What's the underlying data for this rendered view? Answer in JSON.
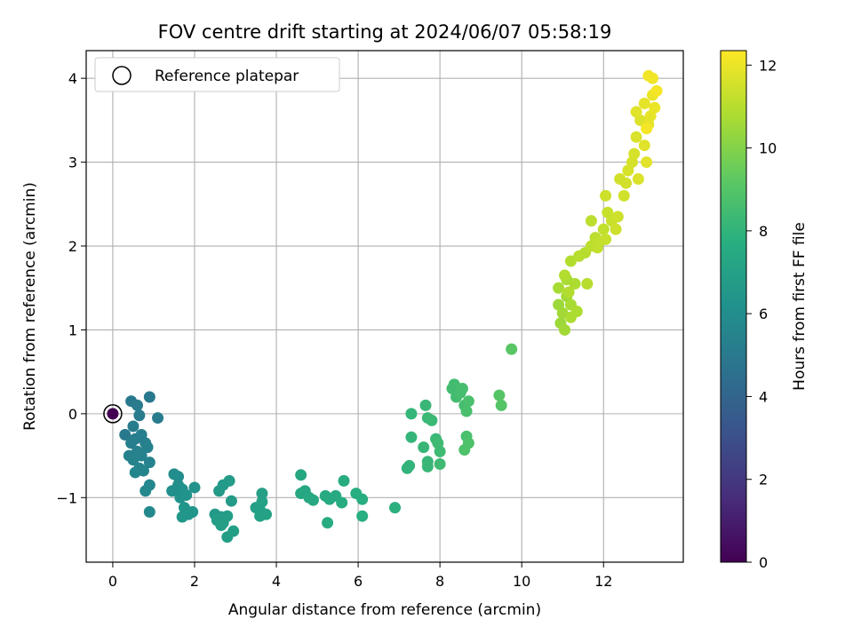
{
  "chart_data": {
    "type": "scatter",
    "title": "FOV centre drift starting at 2024/06/07 05:58:19",
    "xlabel": "Angular distance from reference (arcmin)",
    "ylabel": "Rotation from reference (arcmin)",
    "xlim": [
      -0.65,
      13.95
    ],
    "ylim": [
      -1.77,
      4.33
    ],
    "xticks": [
      0,
      2,
      4,
      6,
      8,
      10,
      12
    ],
    "yticks": [
      -1,
      0,
      1,
      2,
      3,
      4
    ],
    "grid": true,
    "legend": {
      "position": "top-left",
      "entries": [
        "Reference platepar"
      ]
    },
    "reference_point": {
      "x": 0,
      "y": 0,
      "c": 0
    },
    "colorbar": {
      "label": "Hours from first FF file",
      "range": [
        0,
        12.35
      ],
      "ticks": [
        0,
        2,
        4,
        6,
        8,
        10,
        12
      ],
      "colormap": "viridis"
    },
    "series": [
      {
        "points": [
          [
            0.0,
            0.0,
            0.0
          ],
          [
            0.3,
            -0.25,
            5.0
          ],
          [
            0.45,
            0.15,
            5.0
          ],
          [
            0.6,
            0.1,
            5.1
          ],
          [
            0.65,
            -0.02,
            5.1
          ],
          [
            0.9,
            0.2,
            5.0
          ],
          [
            1.1,
            -0.05,
            5.1
          ],
          [
            0.5,
            -0.15,
            5.2
          ],
          [
            0.55,
            -0.3,
            5.2
          ],
          [
            0.45,
            -0.35,
            5.3
          ],
          [
            0.7,
            -0.25,
            5.3
          ],
          [
            0.8,
            -0.35,
            5.3
          ],
          [
            0.85,
            -0.4,
            5.4
          ],
          [
            0.6,
            -0.45,
            5.4
          ],
          [
            0.4,
            -0.5,
            5.4
          ],
          [
            0.5,
            -0.55,
            5.5
          ],
          [
            0.7,
            -0.5,
            5.5
          ],
          [
            0.9,
            -0.58,
            5.5
          ],
          [
            0.65,
            -0.65,
            5.6
          ],
          [
            0.55,
            -0.7,
            5.6
          ],
          [
            0.75,
            -0.68,
            5.6
          ],
          [
            0.9,
            -0.85,
            5.7
          ],
          [
            0.8,
            -0.92,
            5.7
          ],
          [
            0.9,
            -1.17,
            5.8
          ],
          [
            1.5,
            -0.72,
            6.0
          ],
          [
            1.6,
            -0.75,
            6.0
          ],
          [
            1.45,
            -0.92,
            6.1
          ],
          [
            1.6,
            -0.85,
            6.1
          ],
          [
            1.7,
            -0.9,
            6.2
          ],
          [
            1.65,
            -1.0,
            6.2
          ],
          [
            1.8,
            -0.97,
            6.3
          ],
          [
            2.0,
            -0.88,
            6.3
          ],
          [
            1.75,
            -1.12,
            6.4
          ],
          [
            1.95,
            -1.17,
            6.4
          ],
          [
            1.85,
            -1.2,
            6.4
          ],
          [
            1.7,
            -1.23,
            6.5
          ],
          [
            2.5,
            -1.2,
            6.6
          ],
          [
            2.6,
            -0.92,
            6.6
          ],
          [
            2.7,
            -0.85,
            6.6
          ],
          [
            2.85,
            -0.8,
            6.7
          ],
          [
            2.9,
            -1.04,
            6.7
          ],
          [
            2.65,
            -1.23,
            6.7
          ],
          [
            2.55,
            -1.27,
            6.8
          ],
          [
            2.7,
            -1.3,
            6.8
          ],
          [
            2.8,
            -1.22,
            6.8
          ],
          [
            2.65,
            -1.33,
            6.9
          ],
          [
            2.95,
            -1.4,
            6.9
          ],
          [
            2.8,
            -1.47,
            6.9
          ],
          [
            3.5,
            -1.12,
            7.0
          ],
          [
            3.6,
            -1.15,
            7.0
          ],
          [
            3.65,
            -0.95,
            7.0
          ],
          [
            3.65,
            -1.05,
            7.1
          ],
          [
            3.75,
            -1.2,
            7.1
          ],
          [
            3.6,
            -1.22,
            7.1
          ],
          [
            4.6,
            -0.73,
            7.3
          ],
          [
            4.6,
            -0.95,
            7.3
          ],
          [
            4.7,
            -0.92,
            7.3
          ],
          [
            4.8,
            -1.0,
            7.4
          ],
          [
            4.9,
            -1.03,
            7.4
          ],
          [
            5.2,
            -0.98,
            7.5
          ],
          [
            5.3,
            -1.02,
            7.5
          ],
          [
            5.45,
            -0.98,
            7.5
          ],
          [
            5.6,
            -1.06,
            7.6
          ],
          [
            5.25,
            -1.3,
            7.6
          ],
          [
            5.65,
            -0.8,
            7.6
          ],
          [
            5.95,
            -0.95,
            7.7
          ],
          [
            6.1,
            -1.02,
            7.7
          ],
          [
            6.1,
            -1.22,
            7.7
          ],
          [
            6.9,
            -1.12,
            7.8
          ],
          [
            7.2,
            -0.65,
            8.0
          ],
          [
            7.25,
            -0.62,
            8.0
          ],
          [
            7.3,
            -0.28,
            8.1
          ],
          [
            7.3,
            0.0,
            8.1
          ],
          [
            7.6,
            -0.4,
            8.2
          ],
          [
            7.7,
            -0.57,
            8.2
          ],
          [
            7.7,
            -0.63,
            8.2
          ],
          [
            7.65,
            0.1,
            8.2
          ],
          [
            7.7,
            -0.05,
            8.3
          ],
          [
            7.8,
            -0.08,
            8.3
          ],
          [
            7.9,
            -0.3,
            8.3
          ],
          [
            7.95,
            -0.35,
            8.4
          ],
          [
            8.0,
            -0.45,
            8.4
          ],
          [
            8.0,
            -0.6,
            8.4
          ],
          [
            8.3,
            0.3,
            8.5
          ],
          [
            8.35,
            0.35,
            8.5
          ],
          [
            8.4,
            0.2,
            8.5
          ],
          [
            8.5,
            0.25,
            8.6
          ],
          [
            8.55,
            0.3,
            8.6
          ],
          [
            8.6,
            0.1,
            8.6
          ],
          [
            8.7,
            0.15,
            8.7
          ],
          [
            8.65,
            0.03,
            8.7
          ],
          [
            8.65,
            -0.27,
            8.7
          ],
          [
            8.7,
            -0.35,
            8.8
          ],
          [
            8.6,
            -0.43,
            8.8
          ],
          [
            9.45,
            0.22,
            9.0
          ],
          [
            9.5,
            0.1,
            9.0
          ],
          [
            9.75,
            0.77,
            9.1
          ],
          [
            10.9,
            1.3,
            10.5
          ],
          [
            10.95,
            1.08,
            10.5
          ],
          [
            11.05,
            1.0,
            10.6
          ],
          [
            11.0,
            1.2,
            10.6
          ],
          [
            11.1,
            1.4,
            10.6
          ],
          [
            10.9,
            1.5,
            10.7
          ],
          [
            11.1,
            1.6,
            10.7
          ],
          [
            11.2,
            1.3,
            10.7
          ],
          [
            11.2,
            1.15,
            10.8
          ],
          [
            11.35,
            1.22,
            10.8
          ],
          [
            11.3,
            1.55,
            10.8
          ],
          [
            11.15,
            1.45,
            10.9
          ],
          [
            11.05,
            1.65,
            10.9
          ],
          [
            11.2,
            1.82,
            10.9
          ],
          [
            11.4,
            1.88,
            11.0
          ],
          [
            11.6,
            1.55,
            11.0
          ],
          [
            11.55,
            1.92,
            11.0
          ],
          [
            11.7,
            2.0,
            11.1
          ],
          [
            11.7,
            2.3,
            11.1
          ],
          [
            11.8,
            2.1,
            11.1
          ],
          [
            11.85,
            1.98,
            11.2
          ],
          [
            11.9,
            2.05,
            11.2
          ],
          [
            12.0,
            2.2,
            11.2
          ],
          [
            12.05,
            2.08,
            11.3
          ],
          [
            12.1,
            2.4,
            11.3
          ],
          [
            12.2,
            2.3,
            11.3
          ],
          [
            12.3,
            2.2,
            11.4
          ],
          [
            12.35,
            2.35,
            11.4
          ],
          [
            12.05,
            2.6,
            11.4
          ],
          [
            12.4,
            2.8,
            11.5
          ],
          [
            12.5,
            2.6,
            11.5
          ],
          [
            12.55,
            2.75,
            11.5
          ],
          [
            12.6,
            2.9,
            11.6
          ],
          [
            12.7,
            3.0,
            11.6
          ],
          [
            12.75,
            3.1,
            11.6
          ],
          [
            12.85,
            2.8,
            11.7
          ],
          [
            12.8,
            3.3,
            11.7
          ],
          [
            12.9,
            3.5,
            11.7
          ],
          [
            12.8,
            3.6,
            11.8
          ],
          [
            13.0,
            3.2,
            11.8
          ],
          [
            13.05,
            3.0,
            11.8
          ],
          [
            13.0,
            3.7,
            11.9
          ],
          [
            13.1,
            3.45,
            11.9
          ],
          [
            13.15,
            3.55,
            11.9
          ],
          [
            13.2,
            3.8,
            12.0
          ],
          [
            13.25,
            3.65,
            12.0
          ],
          [
            13.1,
            4.03,
            12.1
          ],
          [
            13.2,
            4.0,
            12.1
          ],
          [
            13.3,
            3.85,
            12.2
          ],
          [
            13.05,
            3.4,
            12.2
          ]
        ]
      }
    ]
  }
}
